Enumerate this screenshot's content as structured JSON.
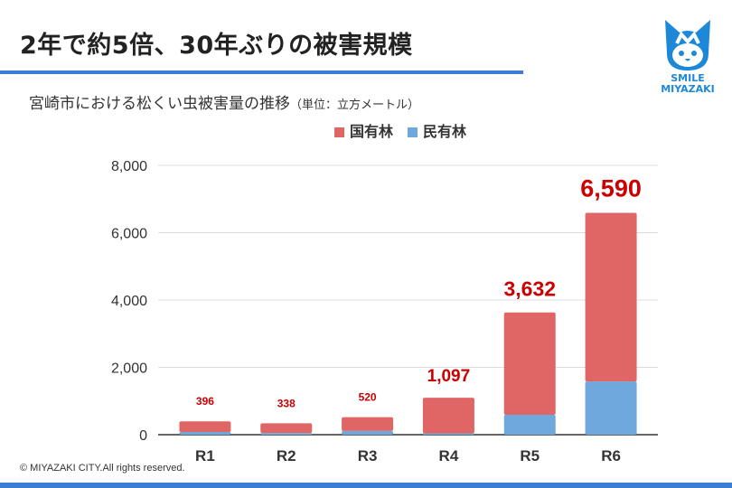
{
  "header": {
    "title": "2年で約5倍、30年ぶりの被害規模",
    "logo_text": [
      "SMILE",
      "MIYAZAKI"
    ]
  },
  "subtitle": {
    "main": "宮崎市における松くい虫被害量の推移",
    "unit": "（単位：立方メートル）"
  },
  "footer": {
    "copyright": "© MIYAZAKI CITY.All rights reserved."
  },
  "chart_data": {
    "type": "bar",
    "stacked": true,
    "categories": [
      "R1",
      "R2",
      "R3",
      "R4",
      "R5",
      "R6"
    ],
    "series": [
      {
        "name": "民有林",
        "color": "#6fa8dc",
        "values": [
          80,
          50,
          110,
          40,
          590,
          1580
        ]
      },
      {
        "name": "国有林",
        "color": "#e06666",
        "values": [
          316,
          288,
          410,
          1057,
          3042,
          5010
        ]
      }
    ],
    "totals": [
      396,
      338,
      520,
      1097,
      3632,
      6590
    ],
    "total_labels": [
      "396",
      "338",
      "520",
      "1,097",
      "3,632",
      "6,590"
    ],
    "ylim": [
      0,
      8000
    ],
    "yticks": [
      0,
      2000,
      4000,
      6000,
      8000
    ],
    "ytick_labels": [
      "0",
      "2,000",
      "4,000",
      "6,000",
      "8,000"
    ],
    "grid": true,
    "legend": "top",
    "label_color": "#cc0000"
  }
}
